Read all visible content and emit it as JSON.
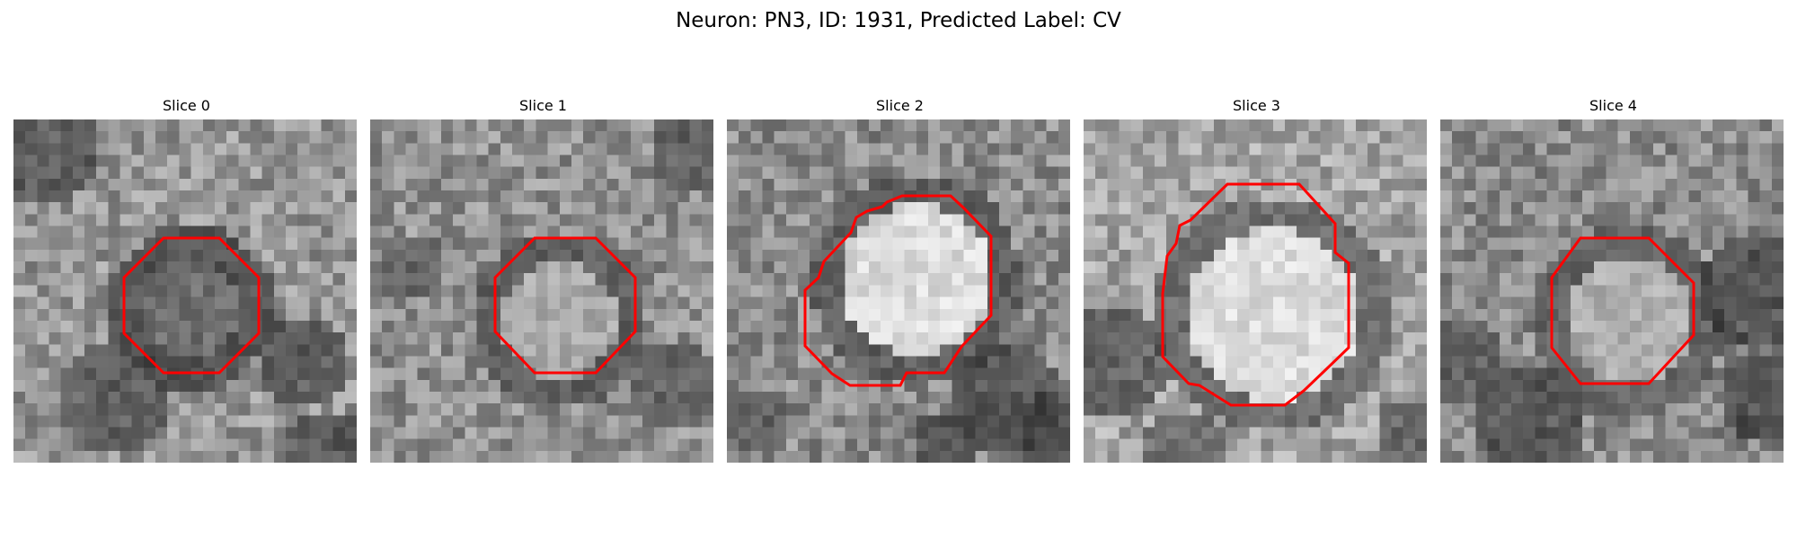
{
  "figure": {
    "title": "Neuron: PN3, ID: 1931, Predicted Label: CV"
  },
  "roi_color": "#ff0000",
  "panels": [
    {
      "title": "Slice 0",
      "image": "grayscale-microscopy-patch",
      "contour": "red-octagon-roi",
      "cell_brightness": "dark"
    },
    {
      "title": "Slice 1",
      "image": "grayscale-microscopy-patch",
      "contour": "red-octagon-roi",
      "cell_brightness": "medium"
    },
    {
      "title": "Slice 2",
      "image": "grayscale-microscopy-patch",
      "contour": "red-irregular-roi",
      "cell_brightness": "bright"
    },
    {
      "title": "Slice 3",
      "image": "grayscale-microscopy-patch",
      "contour": "red-irregular-roi",
      "cell_brightness": "bright"
    },
    {
      "title": "Slice 4",
      "image": "grayscale-microscopy-patch",
      "contour": "red-octagon-roi",
      "cell_brightness": "medium"
    }
  ]
}
